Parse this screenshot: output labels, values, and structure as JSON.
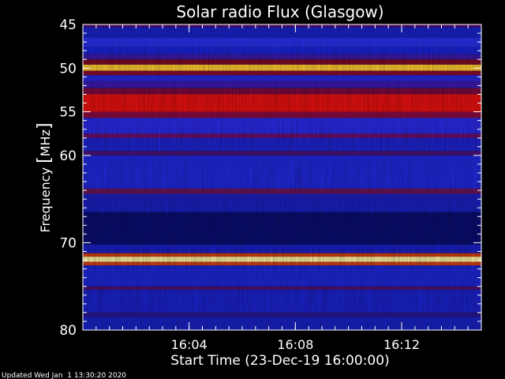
{
  "chart_data": {
    "type": "heatmap",
    "title": "Solar radio Flux (Glasgow)",
    "xlabel": "Start Time (23-Dec-19 16:00:00)",
    "ylabel_text": "Frequency ",
    "ylabel_bracket_open": "[",
    "ylabel_unit": "MHz",
    "ylabel_bracket_close": "]",
    "x_range_minutes": [
      0,
      15
    ],
    "x_ticks": [
      {
        "minute": 4,
        "label": "16:04"
      },
      {
        "minute": 8,
        "label": "16:08"
      },
      {
        "minute": 12,
        "label": "16:12"
      }
    ],
    "x_minor_step_minutes": 0.5,
    "y_range_mhz": [
      45,
      80
    ],
    "y_ticks": [
      {
        "mhz": 45,
        "label": "45"
      },
      {
        "mhz": 50,
        "label": "50"
      },
      {
        "mhz": 55,
        "label": "55"
      },
      {
        "mhz": 60,
        "label": "60"
      },
      {
        "mhz": 70,
        "label": "70"
      },
      {
        "mhz": 80,
        "label": "80"
      }
    ],
    "y_minor_ticks_mhz": [
      46,
      47,
      48,
      49,
      51,
      52,
      53,
      54,
      56,
      57,
      58,
      59,
      61,
      62,
      63,
      64,
      65,
      66,
      67,
      68,
      69,
      71,
      72,
      73,
      74,
      75,
      76,
      77,
      78,
      79
    ],
    "intensity_bands": [
      {
        "from_mhz": 45.0,
        "to_mhz": 45.3,
        "color": "#5a0a6e"
      },
      {
        "from_mhz": 45.3,
        "to_mhz": 46.5,
        "color": "#1822c8"
      },
      {
        "from_mhz": 46.5,
        "to_mhz": 47.6,
        "color": "#2a30ee"
      },
      {
        "from_mhz": 47.6,
        "to_mhz": 48.4,
        "color": "#1a24d8"
      },
      {
        "from_mhz": 48.4,
        "to_mhz": 49.0,
        "color": "#3a1aa8"
      },
      {
        "from_mhz": 49.0,
        "to_mhz": 49.6,
        "color": "#7a0a28"
      },
      {
        "from_mhz": 49.6,
        "to_mhz": 50.3,
        "color": "#ffcc30"
      },
      {
        "from_mhz": 50.3,
        "to_mhz": 50.8,
        "color": "#8a0a30"
      },
      {
        "from_mhz": 50.8,
        "to_mhz": 51.5,
        "color": "#2a28e0"
      },
      {
        "from_mhz": 51.5,
        "to_mhz": 52.3,
        "color": "#3a1ab0"
      },
      {
        "from_mhz": 52.3,
        "to_mhz": 53.0,
        "color": "#7a0a40"
      },
      {
        "from_mhz": 53.0,
        "to_mhz": 55.0,
        "color": "#e81010"
      },
      {
        "from_mhz": 55.0,
        "to_mhz": 55.7,
        "color": "#8a0a40"
      },
      {
        "from_mhz": 55.7,
        "to_mhz": 57.5,
        "color": "#2a2ae8"
      },
      {
        "from_mhz": 57.5,
        "to_mhz": 58.0,
        "color": "#6a1070"
      },
      {
        "from_mhz": 58.0,
        "to_mhz": 59.5,
        "color": "#1e24d0"
      },
      {
        "from_mhz": 59.5,
        "to_mhz": 60.0,
        "color": "#4a1478"
      },
      {
        "from_mhz": 60.0,
        "to_mhz": 63.8,
        "color": "#2028dc"
      },
      {
        "from_mhz": 63.8,
        "to_mhz": 64.4,
        "color": "#6a1458"
      },
      {
        "from_mhz": 64.4,
        "to_mhz": 66.5,
        "color": "#1a20c0"
      },
      {
        "from_mhz": 66.5,
        "to_mhz": 70.2,
        "color": "#0a0c70"
      },
      {
        "from_mhz": 70.2,
        "to_mhz": 71.2,
        "color": "#1a20c4"
      },
      {
        "from_mhz": 71.2,
        "to_mhz": 71.6,
        "color": "#d04010"
      },
      {
        "from_mhz": 71.6,
        "to_mhz": 72.2,
        "color": "#fff0a0"
      },
      {
        "from_mhz": 72.2,
        "to_mhz": 72.6,
        "color": "#d04010"
      },
      {
        "from_mhz": 72.6,
        "to_mhz": 75.0,
        "color": "#1e26d8"
      },
      {
        "from_mhz": 75.0,
        "to_mhz": 75.4,
        "color": "#4a1470"
      },
      {
        "from_mhz": 75.4,
        "to_mhz": 78.0,
        "color": "#1a22cc"
      },
      {
        "from_mhz": 78.0,
        "to_mhz": 78.5,
        "color": "#2a1690"
      },
      {
        "from_mhz": 78.5,
        "to_mhz": 80.0,
        "color": "#1822c4"
      }
    ],
    "colors": {
      "background": "#000000",
      "axis": "#ffffff"
    }
  },
  "footer": {
    "updated": "Updated Wed Jan  1 13:30:20 2020"
  }
}
